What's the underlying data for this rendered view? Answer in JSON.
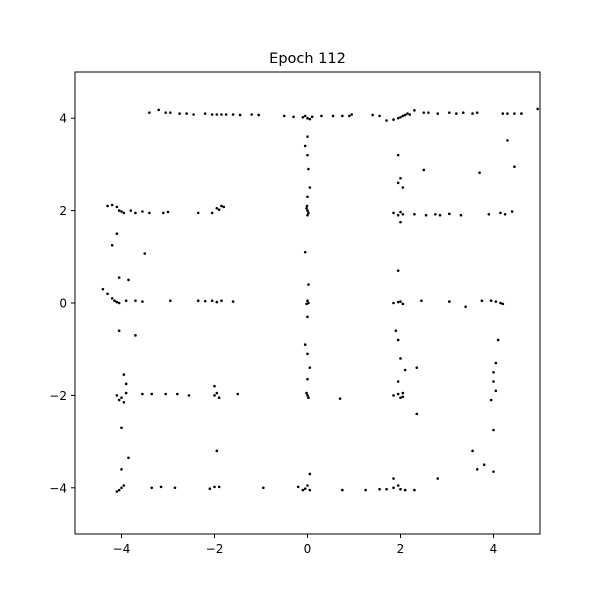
{
  "chart_data": {
    "type": "scatter",
    "title": "Epoch 112",
    "xlabel": "",
    "ylabel": "",
    "xlim": [
      -5,
      5
    ],
    "ylim": [
      -5,
      5
    ],
    "grid": false,
    "x_ticks": [
      -4,
      -2,
      0,
      2,
      4
    ],
    "y_ticks": [
      -4,
      -2,
      0,
      2,
      4
    ],
    "x_tick_labels": [
      "−4",
      "−2",
      "0",
      "2",
      "4"
    ],
    "y_tick_labels": [
      "−4",
      "−2",
      "0",
      "2",
      "4"
    ],
    "marker_color": "#000000",
    "points": [
      [
        -3.4,
        4.12
      ],
      [
        -3.2,
        4.18
      ],
      [
        -3.05,
        4.12
      ],
      [
        -2.95,
        4.12
      ],
      [
        -2.75,
        4.1
      ],
      [
        -2.6,
        4.1
      ],
      [
        -2.45,
        4.08
      ],
      [
        -2.2,
        4.1
      ],
      [
        -2.05,
        4.08
      ],
      [
        -1.95,
        4.08
      ],
      [
        -1.85,
        4.08
      ],
      [
        -1.75,
        4.08
      ],
      [
        -1.6,
        4.08
      ],
      [
        -1.45,
        4.07
      ],
      [
        -1.2,
        4.08
      ],
      [
        -1.05,
        4.07
      ],
      [
        -0.5,
        4.05
      ],
      [
        -0.3,
        4.03
      ],
      [
        -0.1,
        4.02
      ],
      [
        0.0,
        4.0
      ],
      [
        0.05,
        3.98
      ],
      [
        -0.05,
        4.05
      ],
      [
        0.1,
        4.03
      ],
      [
        0.3,
        4.05
      ],
      [
        0.55,
        4.05
      ],
      [
        0.75,
        4.05
      ],
      [
        0.9,
        4.05
      ],
      [
        0.95,
        4.08
      ],
      [
        1.4,
        4.07
      ],
      [
        1.55,
        4.05
      ],
      [
        1.7,
        3.95
      ],
      [
        1.85,
        3.97
      ],
      [
        1.95,
        4.0
      ],
      [
        2.0,
        4.02
      ],
      [
        2.05,
        4.05
      ],
      [
        2.1,
        4.07
      ],
      [
        2.15,
        4.1
      ],
      [
        2.2,
        4.08
      ],
      [
        2.3,
        4.17
      ],
      [
        2.5,
        4.12
      ],
      [
        2.6,
        4.12
      ],
      [
        2.8,
        4.1
      ],
      [
        3.05,
        4.12
      ],
      [
        3.2,
        4.1
      ],
      [
        3.35,
        4.12
      ],
      [
        3.55,
        4.1
      ],
      [
        3.65,
        4.12
      ],
      [
        4.2,
        4.1
      ],
      [
        4.3,
        4.1
      ],
      [
        4.45,
        4.1
      ],
      [
        4.6,
        4.1
      ],
      [
        4.95,
        4.2
      ],
      [
        -4.3,
        2.1
      ],
      [
        -4.2,
        2.12
      ],
      [
        -4.1,
        2.08
      ],
      [
        -4.05,
        2.0
      ],
      [
        -4.0,
        1.98
      ],
      [
        -3.95,
        1.95
      ],
      [
        -3.8,
        2.0
      ],
      [
        -3.7,
        1.95
      ],
      [
        -3.55,
        1.98
      ],
      [
        -3.4,
        1.95
      ],
      [
        -3.1,
        1.95
      ],
      [
        -3.0,
        1.97
      ],
      [
        -2.35,
        1.95
      ],
      [
        -2.05,
        1.95
      ],
      [
        -1.95,
        2.05
      ],
      [
        -1.9,
        2.02
      ],
      [
        -1.85,
        2.1
      ],
      [
        -1.8,
        2.08
      ],
      [
        0.0,
        2.0
      ],
      [
        -0.02,
        2.05
      ],
      [
        0.02,
        1.95
      ],
      [
        -0.01,
        2.1
      ],
      [
        0.0,
        1.9
      ],
      [
        1.85,
        1.95
      ],
      [
        1.95,
        1.9
      ],
      [
        2.0,
        1.97
      ],
      [
        2.05,
        1.92
      ],
      [
        2.3,
        1.92
      ],
      [
        2.55,
        1.9
      ],
      [
        2.75,
        1.92
      ],
      [
        2.85,
        1.9
      ],
      [
        3.05,
        1.93
      ],
      [
        3.3,
        1.9
      ],
      [
        3.9,
        1.92
      ],
      [
        4.15,
        1.95
      ],
      [
        4.25,
        1.92
      ],
      [
        4.4,
        1.98
      ],
      [
        -4.4,
        0.3
      ],
      [
        -4.3,
        0.2
      ],
      [
        -4.2,
        0.1
      ],
      [
        -4.15,
        0.05
      ],
      [
        -4.1,
        0.02
      ],
      [
        -4.05,
        0.0
      ],
      [
        -3.9,
        0.05
      ],
      [
        -3.7,
        0.05
      ],
      [
        -3.55,
        0.03
      ],
      [
        -2.95,
        0.05
      ],
      [
        -2.35,
        0.05
      ],
      [
        -2.2,
        0.04
      ],
      [
        -2.05,
        0.05
      ],
      [
        -1.95,
        0.02
      ],
      [
        -1.85,
        0.05
      ],
      [
        -1.6,
        0.03
      ],
      [
        0.0,
        0.05
      ],
      [
        0.02,
        0.0
      ],
      [
        -0.02,
        -0.02
      ],
      [
        1.85,
        0.0
      ],
      [
        1.95,
        0.02
      ],
      [
        2.0,
        0.03
      ],
      [
        2.05,
        -0.02
      ],
      [
        2.45,
        0.05
      ],
      [
        3.05,
        0.03
      ],
      [
        3.4,
        -0.08
      ],
      [
        3.75,
        0.05
      ],
      [
        3.95,
        0.05
      ],
      [
        4.05,
        0.03
      ],
      [
        4.15,
        0.0
      ],
      [
        4.2,
        -0.02
      ],
      [
        -4.05,
        -2.1
      ],
      [
        -4.0,
        -2.05
      ],
      [
        -3.95,
        -2.15
      ],
      [
        -4.1,
        -2.0
      ],
      [
        -3.9,
        -1.95
      ],
      [
        -3.55,
        -1.97
      ],
      [
        -3.35,
        -1.97
      ],
      [
        -3.05,
        -1.97
      ],
      [
        -2.8,
        -1.97
      ],
      [
        -2.55,
        -2.0
      ],
      [
        -2.0,
        -2.0
      ],
      [
        -1.95,
        -1.95
      ],
      [
        -1.9,
        -2.05
      ],
      [
        -1.5,
        -1.97
      ],
      [
        0.0,
        -2.0
      ],
      [
        -0.02,
        -1.95
      ],
      [
        0.02,
        -2.05
      ],
      [
        0.7,
        -2.07
      ],
      [
        1.85,
        -2.0
      ],
      [
        1.95,
        -1.97
      ],
      [
        2.0,
        -2.05
      ],
      [
        2.05,
        -2.03
      ],
      [
        -4.1,
        -4.08
      ],
      [
        -4.05,
        -4.05
      ],
      [
        -4.0,
        -4.0
      ],
      [
        -3.95,
        -3.95
      ],
      [
        -3.35,
        -4.0
      ],
      [
        -3.15,
        -3.98
      ],
      [
        -2.85,
        -4.0
      ],
      [
        -2.1,
        -4.02
      ],
      [
        -2.0,
        -3.98
      ],
      [
        -1.9,
        -3.98
      ],
      [
        -0.95,
        -4.0
      ],
      [
        -0.2,
        -3.98
      ],
      [
        -0.05,
        -4.02
      ],
      [
        0.05,
        -4.05
      ],
      [
        0.0,
        -3.95
      ],
      [
        0.75,
        -4.05
      ],
      [
        1.25,
        -4.05
      ],
      [
        1.55,
        -4.03
      ],
      [
        1.7,
        -4.03
      ],
      [
        1.85,
        -4.0
      ],
      [
        1.95,
        -3.95
      ],
      [
        2.0,
        -4.03
      ],
      [
        2.1,
        -4.05
      ],
      [
        2.3,
        -4.05
      ],
      [
        2.8,
        -3.8
      ],
      [
        3.65,
        -3.6
      ],
      [
        3.8,
        -3.5
      ],
      [
        4.0,
        -3.65
      ],
      [
        0.0,
        3.6
      ],
      [
        -0.05,
        3.4
      ],
      [
        0.0,
        3.2
      ],
      [
        0.02,
        2.9
      ],
      [
        0.05,
        2.5
      ],
      [
        0.0,
        2.3
      ],
      [
        -0.05,
        1.1
      ],
      [
        0.02,
        0.4
      ],
      [
        0.0,
        -0.3
      ],
      [
        -0.05,
        -0.9
      ],
      [
        0.0,
        -1.1
      ],
      [
        0.05,
        -1.4
      ],
      [
        0.0,
        -1.65
      ],
      [
        1.95,
        3.2
      ],
      [
        2.0,
        2.7
      ],
      [
        2.05,
        2.5
      ],
      [
        1.95,
        2.6
      ],
      [
        2.0,
        1.75
      ],
      [
        1.95,
        0.7
      ],
      [
        1.9,
        -0.6
      ],
      [
        1.95,
        -0.8
      ],
      [
        2.0,
        -1.2
      ],
      [
        1.95,
        -1.7
      ],
      [
        2.1,
        -1.45
      ],
      [
        2.35,
        -1.4
      ],
      [
        2.35,
        -2.4
      ],
      [
        2.5,
        2.88
      ],
      [
        3.7,
        2.82
      ],
      [
        4.3,
        3.52
      ],
      [
        4.45,
        2.95
      ],
      [
        3.55,
        -3.2
      ],
      [
        4.1,
        -0.8
      ],
      [
        4.05,
        -1.3
      ],
      [
        4.0,
        -1.5
      ],
      [
        4.0,
        -1.7
      ],
      [
        4.05,
        -1.9
      ],
      [
        3.95,
        -2.1
      ],
      [
        4.0,
        -2.75
      ],
      [
        -3.5,
        1.07
      ],
      [
        -4.2,
        1.25
      ],
      [
        -4.1,
        1.5
      ],
      [
        -4.05,
        0.55
      ],
      [
        -3.85,
        0.5
      ],
      [
        -3.7,
        -0.7
      ],
      [
        -4.05,
        -0.6
      ],
      [
        -3.95,
        -1.55
      ],
      [
        -3.9,
        -1.75
      ],
      [
        -4.0,
        -2.7
      ],
      [
        -4.0,
        -3.6
      ],
      [
        -3.85,
        -3.35
      ],
      [
        -2.0,
        -1.8
      ],
      [
        -1.95,
        -3.2
      ],
      [
        -0.1,
        -4.05
      ],
      [
        0.05,
        -3.7
      ],
      [
        2.05,
        -1.95
      ],
      [
        1.85,
        -3.8
      ]
    ]
  }
}
